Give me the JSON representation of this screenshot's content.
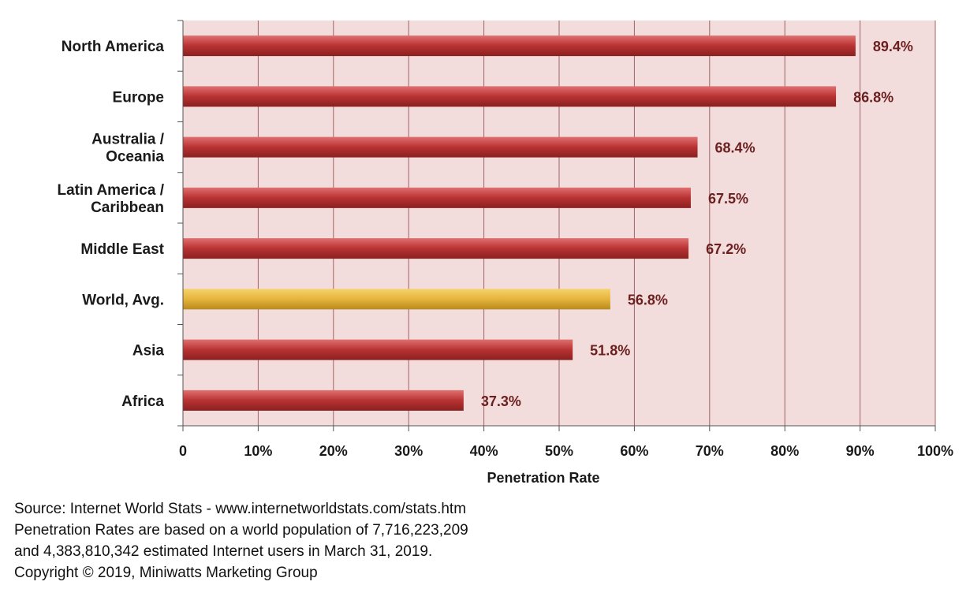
{
  "chart_data": {
    "type": "bar",
    "orientation": "horizontal",
    "categories": [
      [
        "North America"
      ],
      [
        "Europe"
      ],
      [
        "Australia /",
        "Oceania"
      ],
      [
        "Latin America /",
        "Caribbean"
      ],
      [
        "Middle East"
      ],
      [
        "World, Avg."
      ],
      [
        "Asia"
      ],
      [
        "Africa"
      ]
    ],
    "values": [
      89.4,
      86.8,
      68.4,
      67.5,
      67.2,
      56.8,
      51.8,
      37.3
    ],
    "value_labels": [
      "89.4%",
      "86.8%",
      "68.4%",
      "67.5%",
      "67.2%",
      "56.8%",
      "51.8%",
      "37.3%"
    ],
    "highlight_index": 5,
    "xlim": [
      0,
      100
    ],
    "xticks": [
      0,
      10,
      20,
      30,
      40,
      50,
      60,
      70,
      80,
      90,
      100
    ],
    "xtick_labels": [
      "0",
      "10%",
      "20%",
      "30%",
      "40%",
      "50%",
      "60%",
      "70%",
      "80%",
      "90%",
      "100%"
    ],
    "xlabel": "Penetration Rate",
    "grid": "vertical",
    "colors": {
      "bar": "#b83232",
      "bar_highlight": "#e6b43c",
      "plot_background": "#f2dcdc",
      "gridline": "#a06464",
      "value_label": "#6b1f1f"
    }
  },
  "notes": [
    "Source: Internet World Stats - www.internetworldstats.com/stats.htm",
    "Penetration Rates are based on a world population of 7,716,223,209",
    "and 4,383,810,342 estimated Internet users in March 31, 2019.",
    "Copyright © 2019, Miniwatts Marketing Group"
  ]
}
